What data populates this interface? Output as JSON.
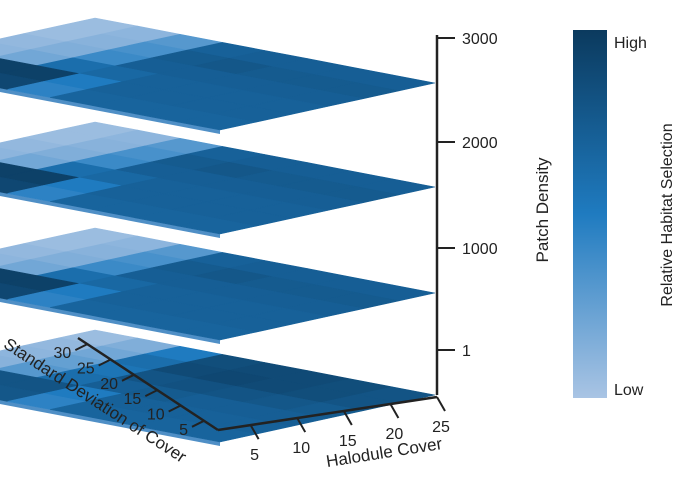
{
  "chart_data": {
    "type": "heatmap",
    "layout": "stacked 3D surface slices",
    "x_axis": {
      "label": "Halodule Cover",
      "ticks": [
        5,
        10,
        15,
        20,
        25
      ]
    },
    "y_axis": {
      "label": "Standard Deviation of Cover",
      "ticks": [
        30,
        25,
        20,
        15,
        10,
        5
      ]
    },
    "z_axis": {
      "label": "Patch Density",
      "ticks": [
        1,
        1000,
        2000,
        3000
      ]
    },
    "colorbar": {
      "label": "Relative Habitat Selection",
      "high_label": "High",
      "low_label": "Low",
      "colors": [
        "#a9c4e4",
        "#1f7bc0",
        "#0b3a5e"
      ]
    },
    "slices": [
      {
        "patch_density": 3000,
        "grid": [
          [
            0.05,
            0.1,
            0.3,
            0.7,
            0.72,
            0.72,
            0.72,
            0.72
          ],
          [
            0.05,
            0.12,
            0.35,
            0.75,
            0.78,
            0.75,
            0.75,
            0.75
          ],
          [
            0.08,
            0.15,
            0.4,
            0.72,
            0.72,
            0.72,
            0.72,
            0.72
          ],
          [
            0.1,
            0.2,
            0.6,
            0.65,
            0.7,
            0.7,
            0.7,
            0.7
          ],
          [
            0.15,
            0.95,
            0.95,
            0.5,
            0.7,
            0.7,
            0.7,
            0.7
          ],
          [
            0.2,
            0.9,
            0.9,
            0.45,
            0.68,
            0.68,
            0.68,
            0.68
          ]
        ]
      },
      {
        "patch_density": 2000,
        "grid": [
          [
            0.05,
            0.1,
            0.3,
            0.7,
            0.72,
            0.72,
            0.72,
            0.72
          ],
          [
            0.05,
            0.12,
            0.35,
            0.75,
            0.78,
            0.75,
            0.75,
            0.75
          ],
          [
            0.08,
            0.15,
            0.4,
            0.72,
            0.72,
            0.72,
            0.72,
            0.72
          ],
          [
            0.1,
            0.2,
            0.6,
            0.65,
            0.7,
            0.7,
            0.7,
            0.7
          ],
          [
            0.15,
            0.95,
            0.95,
            0.5,
            0.7,
            0.7,
            0.7,
            0.7
          ],
          [
            0.2,
            0.9,
            0.9,
            0.45,
            0.68,
            0.68,
            0.68,
            0.68
          ]
        ]
      },
      {
        "patch_density": 1000,
        "grid": [
          [
            0.05,
            0.1,
            0.3,
            0.7,
            0.72,
            0.72,
            0.72,
            0.72
          ],
          [
            0.05,
            0.12,
            0.35,
            0.75,
            0.78,
            0.75,
            0.75,
            0.75
          ],
          [
            0.08,
            0.15,
            0.4,
            0.72,
            0.72,
            0.72,
            0.72,
            0.72
          ],
          [
            0.1,
            0.2,
            0.6,
            0.65,
            0.7,
            0.7,
            0.7,
            0.7
          ],
          [
            0.15,
            0.95,
            0.95,
            0.5,
            0.7,
            0.7,
            0.7,
            0.7
          ],
          [
            0.2,
            0.9,
            0.9,
            0.45,
            0.68,
            0.68,
            0.68,
            0.68
          ]
        ]
      },
      {
        "patch_density": 1,
        "grid": [
          [
            0.05,
            0.15,
            0.5,
            0.85,
            0.88,
            0.88,
            0.85,
            0.8
          ],
          [
            0.08,
            0.2,
            0.6,
            0.88,
            0.9,
            0.88,
            0.85,
            0.8
          ],
          [
            0.1,
            0.25,
            0.55,
            0.8,
            0.82,
            0.8,
            0.78,
            0.75
          ],
          [
            0.12,
            0.3,
            0.6,
            0.72,
            0.75,
            0.72,
            0.72,
            0.72
          ],
          [
            0.2,
            0.8,
            0.8,
            0.5,
            0.7,
            0.7,
            0.7,
            0.7
          ],
          [
            0.25,
            0.78,
            0.78,
            0.45,
            0.68,
            0.68,
            0.68,
            0.68
          ]
        ]
      }
    ]
  }
}
